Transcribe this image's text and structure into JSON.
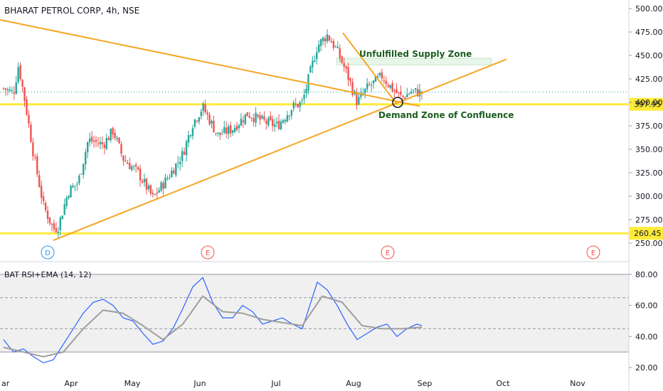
{
  "chart_data": [
    {
      "type": "candlestick",
      "title": "BHARAT PETROL CORP, 4h, NSE",
      "ylim": [
        240,
        510
      ],
      "y_ticks": [
        250,
        275,
        300,
        325,
        350,
        375,
        400,
        425,
        450,
        475,
        500
      ],
      "y_tick_labels": [
        "250.00",
        "275.00",
        "300.00",
        "325.00",
        "350.00",
        "375.00",
        "400.00",
        "425.00",
        "450.00",
        "475.00",
        "500.00"
      ],
      "x_tick_labels": [
        "ar",
        "Apr",
        "May",
        "Jun",
        "Jul",
        "Aug",
        "Sep",
        "Oct",
        "Nov"
      ],
      "price_levels": [
        {
          "label": "397.95",
          "value": 397.95
        },
        {
          "label": "260.45",
          "value": 260.45
        }
      ],
      "current_price_dotted": 411,
      "annotations": [
        {
          "text": "Unfulfilled Supply Zone"
        },
        {
          "text": "Demand Zone of Confluence"
        }
      ],
      "event_markers": [
        "D",
        "E",
        "E",
        "E"
      ],
      "colors": {
        "up": "#26a69a",
        "down": "#ef5350",
        "level": "#ffeb3b",
        "trendline": "#f5a623",
        "zone": "#e8f5e9"
      },
      "price_path": [
        {
          "t": 0,
          "close": 415
        },
        {
          "t": 0.02,
          "close": 410
        },
        {
          "t": 0.03,
          "close": 440
        },
        {
          "t": 0.045,
          "close": 395
        },
        {
          "t": 0.06,
          "close": 345
        },
        {
          "t": 0.08,
          "close": 290
        },
        {
          "t": 0.1,
          "close": 265
        },
        {
          "t": 0.11,
          "close": 268
        },
        {
          "t": 0.13,
          "close": 305
        },
        {
          "t": 0.15,
          "close": 315
        },
        {
          "t": 0.17,
          "close": 360
        },
        {
          "t": 0.2,
          "close": 355
        },
        {
          "t": 0.22,
          "close": 370
        },
        {
          "t": 0.24,
          "close": 340
        },
        {
          "t": 0.27,
          "close": 325
        },
        {
          "t": 0.3,
          "close": 298
        },
        {
          "t": 0.33,
          "close": 320
        },
        {
          "t": 0.36,
          "close": 345
        },
        {
          "t": 0.38,
          "close": 378
        },
        {
          "t": 0.4,
          "close": 395
        },
        {
          "t": 0.43,
          "close": 365
        },
        {
          "t": 0.46,
          "close": 372
        },
        {
          "t": 0.49,
          "close": 388
        },
        {
          "t": 0.52,
          "close": 380
        },
        {
          "t": 0.55,
          "close": 375
        },
        {
          "t": 0.58,
          "close": 395
        },
        {
          "t": 0.6,
          "close": 400
        },
        {
          "t": 0.63,
          "close": 460
        },
        {
          "t": 0.65,
          "close": 472
        },
        {
          "t": 0.67,
          "close": 455
        },
        {
          "t": 0.69,
          "close": 430
        },
        {
          "t": 0.71,
          "close": 400
        },
        {
          "t": 0.73,
          "close": 415
        },
        {
          "t": 0.76,
          "close": 428
        },
        {
          "t": 0.78,
          "close": 415
        },
        {
          "t": 0.8,
          "close": 405
        },
        {
          "t": 0.82,
          "close": 412
        },
        {
          "t": 0.84,
          "close": 410
        }
      ]
    },
    {
      "type": "line",
      "title": "BAT RSI+EMA (14, 12)",
      "ylim": [
        15,
        85
      ],
      "y_ticks": [
        20,
        40,
        60,
        80
      ],
      "y_tick_labels": [
        "20.00",
        "40.00",
        "60.00",
        "80.00"
      ],
      "bands": [
        30,
        45,
        65,
        80
      ],
      "series": [
        {
          "color": "#2962ff",
          "values": [
            [
              0,
              38
            ],
            [
              0.02,
              30
            ],
            [
              0.04,
              32
            ],
            [
              0.06,
              27
            ],
            [
              0.08,
              23
            ],
            [
              0.1,
              25
            ],
            [
              0.12,
              35
            ],
            [
              0.14,
              45
            ],
            [
              0.16,
              55
            ],
            [
              0.18,
              62
            ],
            [
              0.2,
              64
            ],
            [
              0.22,
              60
            ],
            [
              0.24,
              52
            ],
            [
              0.26,
              50
            ],
            [
              0.28,
              42
            ],
            [
              0.3,
              35
            ],
            [
              0.32,
              37
            ],
            [
              0.34,
              45
            ],
            [
              0.36,
              58
            ],
            [
              0.38,
              72
            ],
            [
              0.4,
              78
            ],
            [
              0.42,
              62
            ],
            [
              0.44,
              52
            ],
            [
              0.46,
              52
            ],
            [
              0.48,
              60
            ],
            [
              0.5,
              56
            ],
            [
              0.52,
              48
            ],
            [
              0.54,
              50
            ],
            [
              0.56,
              52
            ],
            [
              0.58,
              48
            ],
            [
              0.6,
              45
            ],
            [
              0.63,
              75
            ],
            [
              0.65,
              70
            ],
            [
              0.67,
              60
            ],
            [
              0.69,
              48
            ],
            [
              0.71,
              38
            ],
            [
              0.73,
              42
            ],
            [
              0.75,
              46
            ],
            [
              0.77,
              48
            ],
            [
              0.79,
              40
            ],
            [
              0.81,
              45
            ],
            [
              0.83,
              48
            ],
            [
              0.84,
              47
            ]
          ]
        },
        {
          "color": "#9e9e9e",
          "values": [
            [
              0,
              33
            ],
            [
              0.04,
              30
            ],
            [
              0.08,
              27
            ],
            [
              0.12,
              30
            ],
            [
              0.16,
              45
            ],
            [
              0.2,
              57
            ],
            [
              0.24,
              55
            ],
            [
              0.28,
              47
            ],
            [
              0.32,
              38
            ],
            [
              0.36,
              48
            ],
            [
              0.4,
              66
            ],
            [
              0.44,
              56
            ],
            [
              0.48,
              55
            ],
            [
              0.52,
              51
            ],
            [
              0.56,
              49
            ],
            [
              0.6,
              47
            ],
            [
              0.64,
              66
            ],
            [
              0.68,
              62
            ],
            [
              0.72,
              47
            ],
            [
              0.76,
              45
            ],
            [
              0.8,
              45
            ],
            [
              0.84,
              46
            ]
          ]
        }
      ]
    }
  ]
}
